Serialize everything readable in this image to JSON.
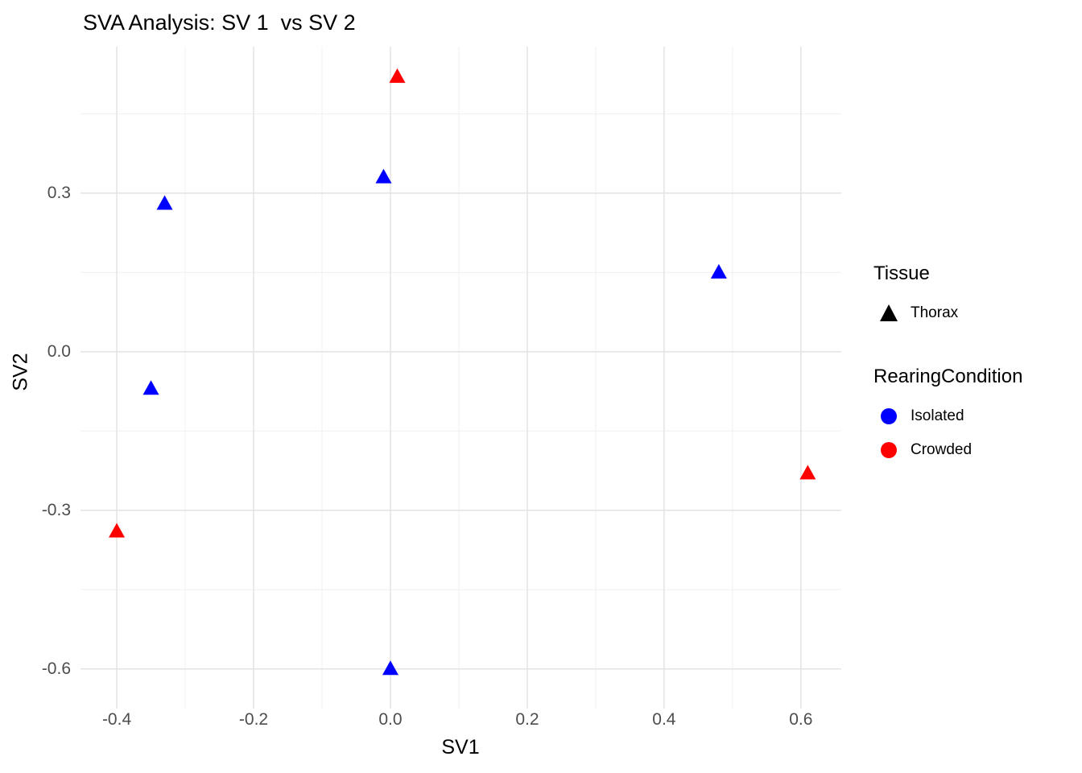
{
  "title": "SVA Analysis: SV 1  vs SV 2",
  "axes": {
    "x_label": "SV1",
    "y_label": "SV2"
  },
  "legend": {
    "tissue": {
      "title": "Tissue",
      "items": [
        {
          "label": "Thorax",
          "shape": "triangle",
          "color": "#000000"
        }
      ]
    },
    "rearing": {
      "title": "RearingCondition",
      "items": [
        {
          "label": "Isolated",
          "shape": "circle",
          "color": "#0000FF"
        },
        {
          "label": "Crowded",
          "shape": "circle",
          "color": "#FF0000"
        }
      ]
    }
  },
  "chart_data": {
    "type": "scatter",
    "title": "SVA Analysis: SV 1  vs SV 2",
    "xlabel": "SV1",
    "ylabel": "SV2",
    "xlim": [
      -0.453,
      0.659
    ],
    "ylim": [
      -0.675,
      0.577
    ],
    "grid": "on",
    "legend_position": "right",
    "marker_shape": "triangle",
    "series_colors": {
      "Isolated": "#0000FF",
      "Crowded": "#FF0000"
    },
    "x_ticks": [
      {
        "value": -0.4,
        "label": "-0.4"
      },
      {
        "value": -0.2,
        "label": "-0.2"
      },
      {
        "value": 0.0,
        "label": "0.0"
      },
      {
        "value": 0.2,
        "label": "0.2"
      },
      {
        "value": 0.4,
        "label": "0.4"
      },
      {
        "value": 0.6,
        "label": "0.6"
      }
    ],
    "y_ticks": [
      {
        "value": 0.3,
        "label": "0.3"
      },
      {
        "value": 0.0,
        "label": "0.0"
      },
      {
        "value": -0.3,
        "label": "-0.3"
      },
      {
        "value": -0.6,
        "label": "-0.6"
      }
    ],
    "x_minor": [
      -0.3,
      -0.1,
      0.1,
      0.3,
      0.5
    ],
    "y_minor": [
      0.45,
      0.15,
      -0.15,
      -0.45
    ],
    "points": [
      {
        "x": 0.01,
        "y": 0.52,
        "tissue": "Thorax",
        "condition": "Crowded"
      },
      {
        "x": -0.01,
        "y": 0.33,
        "tissue": "Thorax",
        "condition": "Isolated"
      },
      {
        "x": -0.33,
        "y": 0.28,
        "tissue": "Thorax",
        "condition": "Isolated"
      },
      {
        "x": 0.48,
        "y": 0.15,
        "tissue": "Thorax",
        "condition": "Isolated"
      },
      {
        "x": -0.35,
        "y": -0.07,
        "tissue": "Thorax",
        "condition": "Isolated"
      },
      {
        "x": 0.61,
        "y": -0.23,
        "tissue": "Thorax",
        "condition": "Crowded"
      },
      {
        "x": -0.4,
        "y": -0.34,
        "tissue": "Thorax",
        "condition": "Crowded"
      },
      {
        "x": 0.0,
        "y": -0.6,
        "tissue": "Thorax",
        "condition": "Isolated"
      }
    ]
  }
}
